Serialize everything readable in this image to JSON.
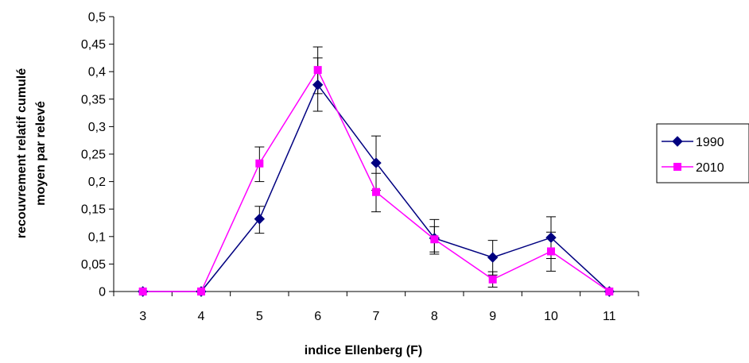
{
  "chart_data": {
    "type": "line",
    "xlabel": "indice Ellenberg (F)",
    "ylabel_lines": [
      "recouvrement relatif cumulé",
      "moyen par relevé"
    ],
    "categories": [
      "3",
      "4",
      "5",
      "6",
      "7",
      "8",
      "9",
      "10",
      "11"
    ],
    "ylim": [
      0,
      0.5
    ],
    "y_ticks": [
      "0",
      "0,05",
      "0,1",
      "0,15",
      "0,2",
      "0,25",
      "0,3",
      "0,35",
      "0,4",
      "0,45",
      "0,5"
    ],
    "grid": false,
    "legend_position": "right",
    "series": [
      {
        "name": "1990",
        "color": "#000080",
        "marker": "diamond",
        "values": [
          0,
          0,
          0.132,
          0.376,
          0.234,
          0.097,
          0.062,
          0.098,
          0
        ],
        "error_low": [
          null,
          null,
          0.106,
          0.328,
          0.184,
          0.068,
          0.03,
          0.06,
          null
        ],
        "error_high": [
          null,
          null,
          0.155,
          0.425,
          0.283,
          0.131,
          0.093,
          0.136,
          null
        ]
      },
      {
        "name": "2010",
        "color": "#FF00FF",
        "marker": "square",
        "values": [
          0,
          0,
          0.233,
          0.403,
          0.181,
          0.095,
          0.022,
          0.073,
          0
        ],
        "error_low": [
          null,
          null,
          0.2,
          0.36,
          0.145,
          0.072,
          0.008,
          0.037,
          null
        ],
        "error_high": [
          null,
          null,
          0.263,
          0.445,
          0.215,
          0.118,
          0.036,
          0.108,
          null
        ]
      }
    ]
  }
}
